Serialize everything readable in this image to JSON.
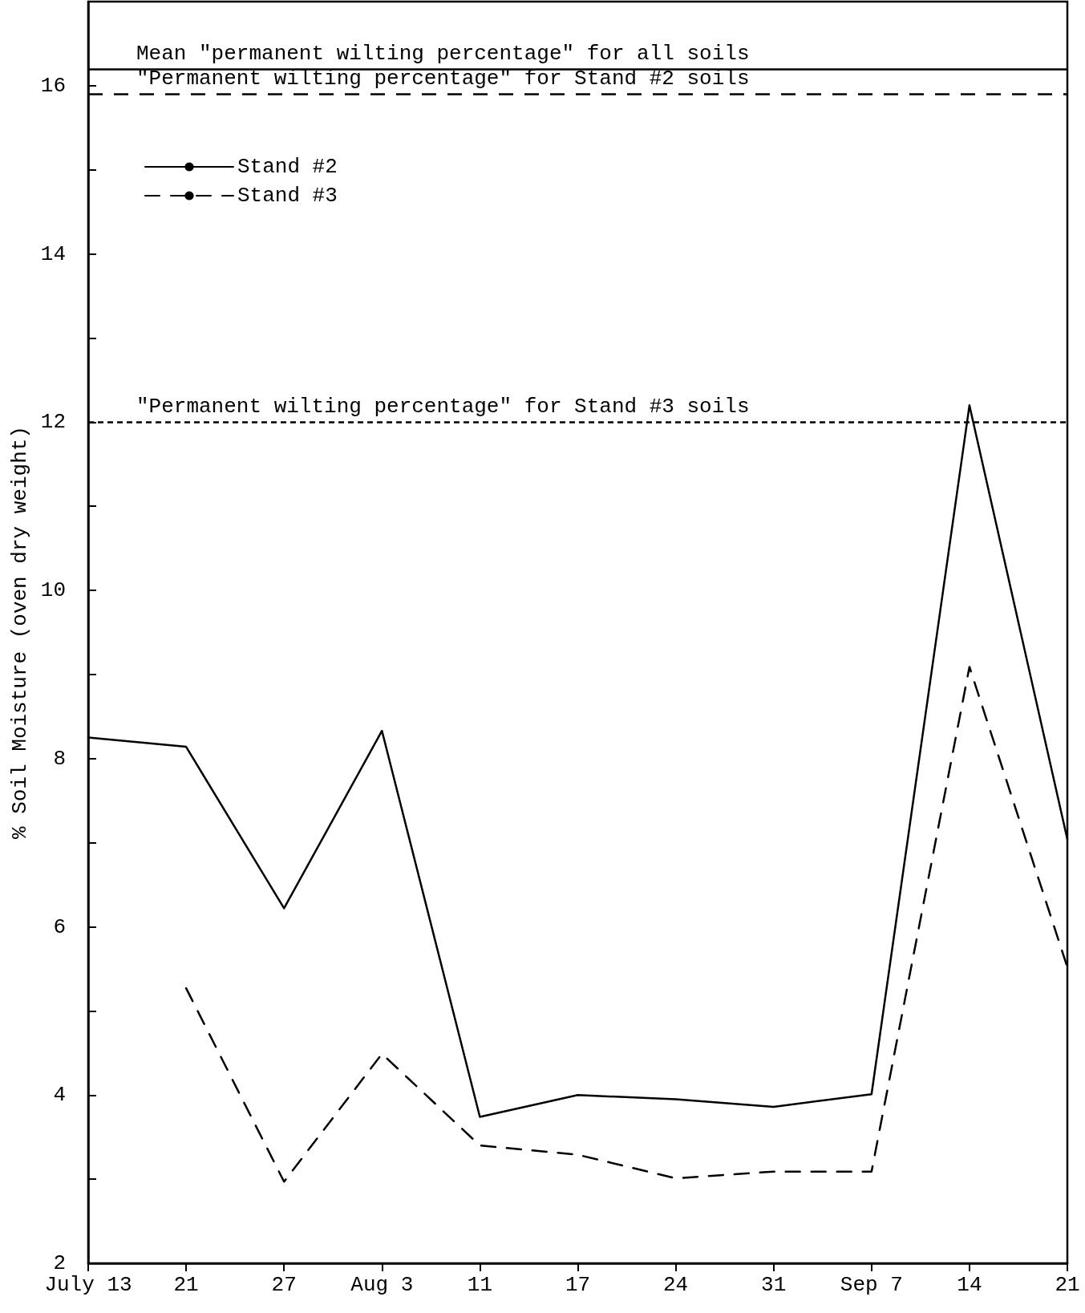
{
  "chart_data": {
    "type": "line",
    "ylabel": "% Soil Moisture (oven dry weight)",
    "categories": [
      "July 13",
      "21",
      "27",
      "Aug 3",
      "11",
      "17",
      "24",
      "31",
      "Sep 7",
      "14",
      "21"
    ],
    "series": [
      {
        "name": "Stand #2",
        "color": "#000000",
        "line_style": "solid",
        "values": [
          8.25,
          8.14,
          6.22,
          8.33,
          3.74,
          4.0,
          3.95,
          3.86,
          4.01,
          12.2,
          7.04
        ]
      },
      {
        "name": "Stand #3",
        "color": "#000000",
        "line_style": "dashed",
        "values": [
          null,
          5.27,
          2.97,
          4.49,
          3.4,
          3.29,
          3.01,
          3.09,
          3.09,
          9.09,
          5.52
        ]
      }
    ],
    "ref_lines": [
      {
        "axis": "y",
        "value": 16.2,
        "label": "Mean \"permanent wilting percentage\" for all soils",
        "color": "#000000",
        "line_style": "solid"
      },
      {
        "axis": "y",
        "value": 15.9,
        "label": "\"Permanent wilting percentage\" for Stand #2 soils",
        "color": "#000000",
        "line_style": "dashed"
      },
      {
        "axis": "y",
        "value": 12.0,
        "label": "\"Permanent wilting percentage\" for Stand #3 soils",
        "color": "#000000",
        "line_style": "dotted"
      }
    ],
    "ylim": [
      2,
      17
    ],
    "yticks": [
      2,
      {
        "value": 3,
        "label": null
      },
      4,
      {
        "value": 5,
        "label": null
      },
      6,
      {
        "value": 7,
        "label": null
      },
      8,
      {
        "value": 9,
        "label": null
      },
      10,
      {
        "value": 11,
        "label": null
      },
      12,
      {
        "value": 13,
        "label": null
      },
      14,
      {
        "value": 15,
        "label": null
      },
      16
    ],
    "grid": false,
    "legend": "top left",
    "marker": "none"
  }
}
